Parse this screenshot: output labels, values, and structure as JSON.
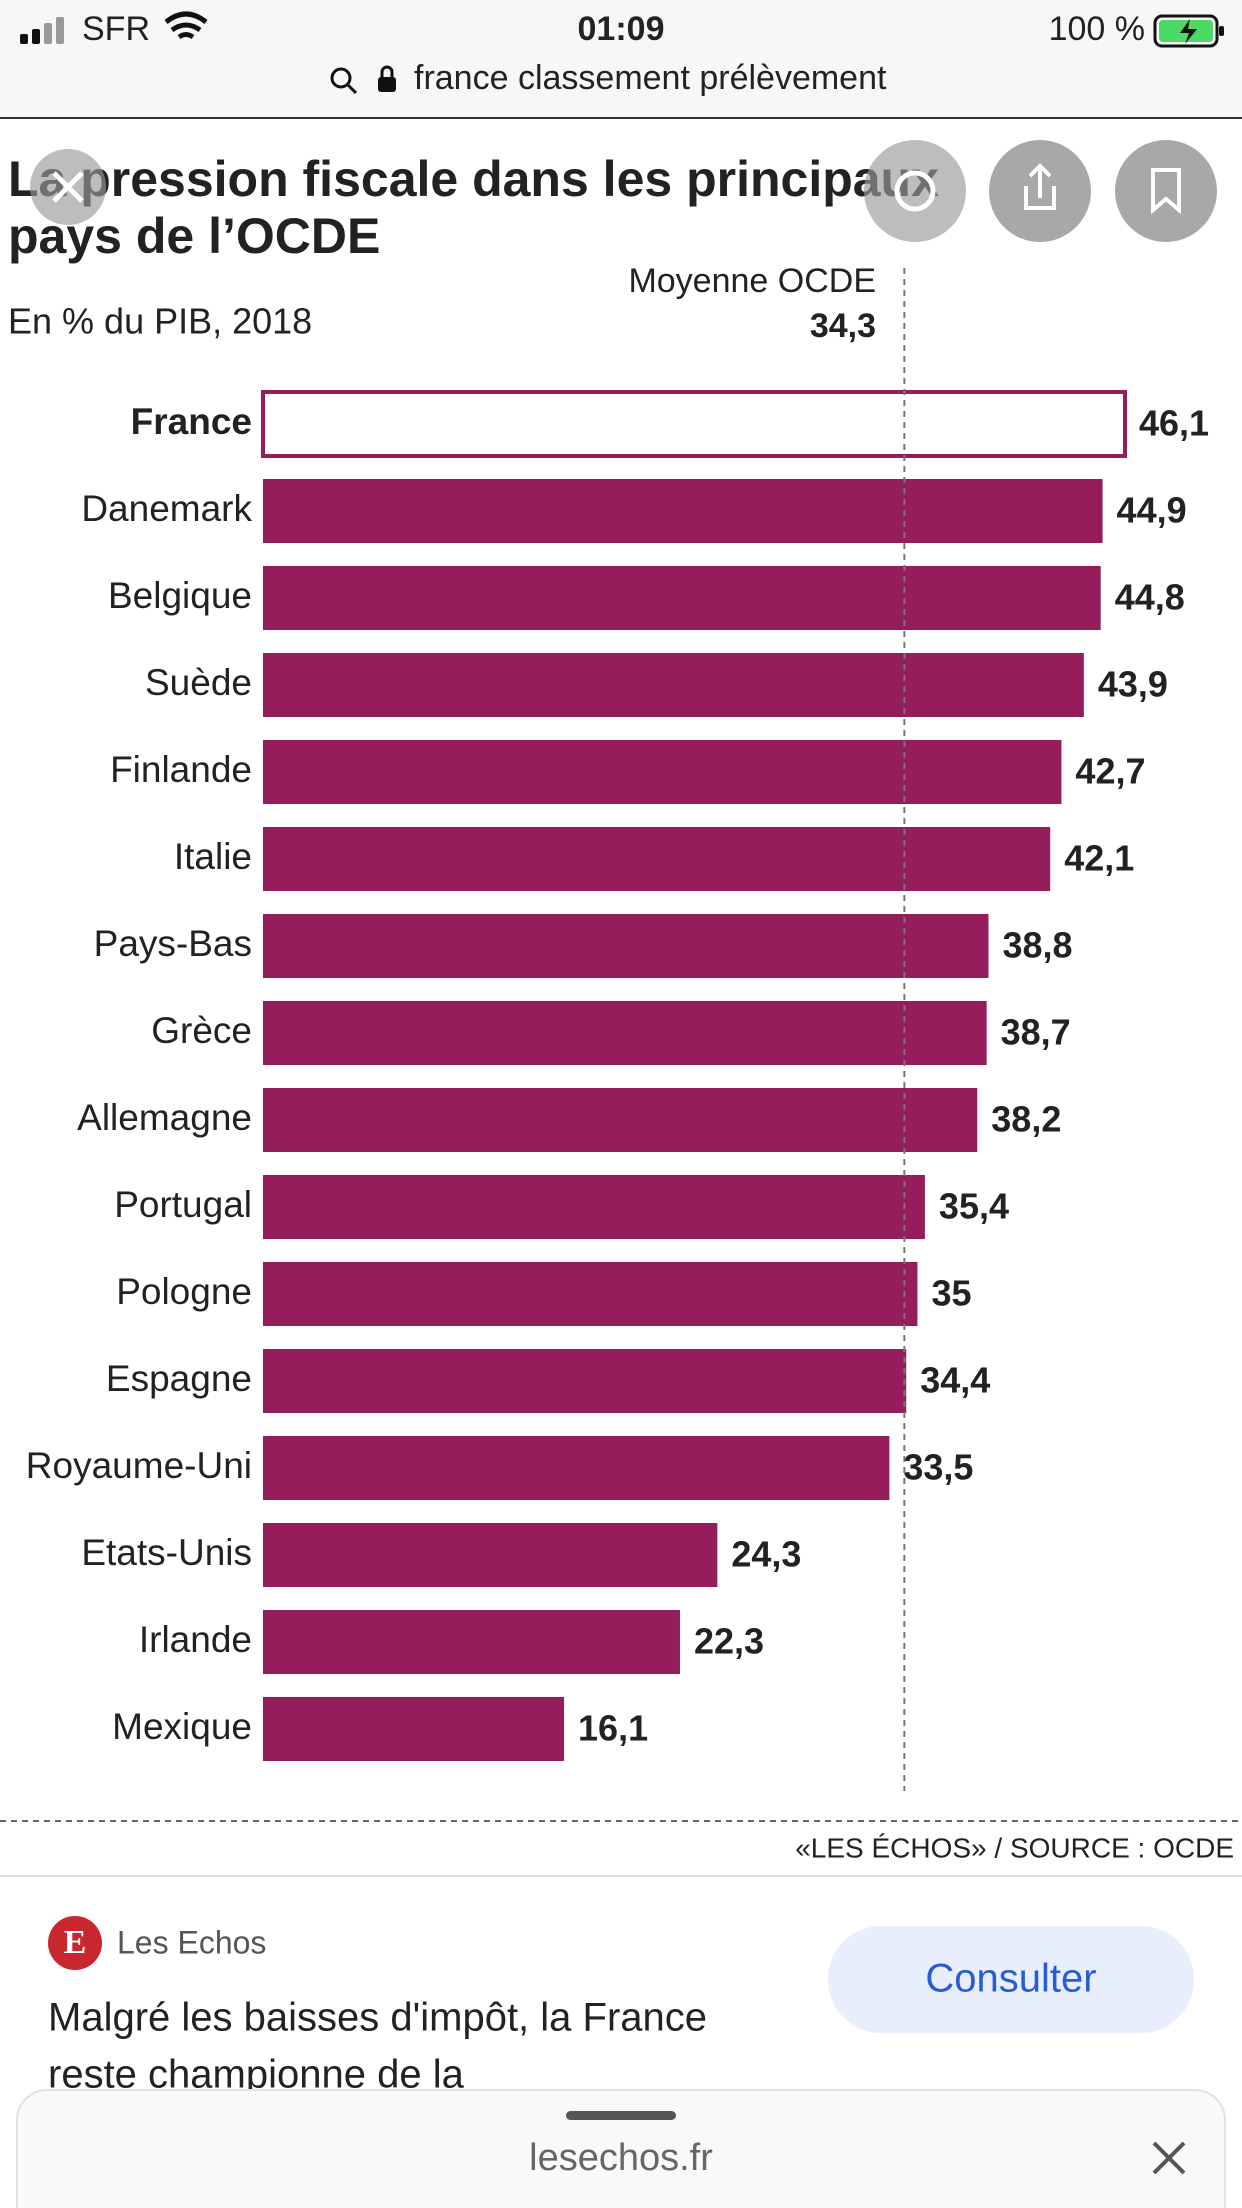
{
  "status_bar": {
    "carrier": "SFR",
    "time": "01:09",
    "battery": "100 %"
  },
  "url_bar": {
    "text": "france classement prélèvement"
  },
  "chart_data": {
    "type": "bar",
    "orientation": "horizontal",
    "title": [
      "La pression fiscale dans les principaux",
      "pays de l’OCDE"
    ],
    "subtitle": "En % du PIB, 2018",
    "categories": [
      "France",
      "Danemark",
      "Belgique",
      "Suède",
      "Finlande",
      "Italie",
      "Pays-Bas",
      "Grèce",
      "Allemagne",
      "Portugal",
      "Pologne",
      "Espagne",
      "Royaume-Uni",
      "Etats-Unis",
      "Irlande",
      "Mexique"
    ],
    "values": [
      46.1,
      44.9,
      44.8,
      43.9,
      42.7,
      42.1,
      38.8,
      38.7,
      38.2,
      35.4,
      35,
      34.4,
      33.5,
      24.3,
      22.3,
      16.1
    ],
    "value_labels": [
      "46,1",
      "44,9",
      "44,8",
      "43,9",
      "42,7",
      "42,1",
      "38,8",
      "38,7",
      "38,2",
      "35,4",
      "35",
      "34,4",
      "33,5",
      "24,3",
      "22,3",
      "16,1"
    ],
    "color": "#951d5c",
    "highlighted": "France",
    "highlight_fill": "#ffffff",
    "xlim": [
      0,
      46.1
    ],
    "reference_line": {
      "label": "Moyenne OCDE",
      "value": 34.3,
      "value_label": "34,3"
    },
    "source": "«LES ÉCHOS» / SOURCE : OCDE"
  },
  "card": {
    "publisher": "Les Echos",
    "logo": "E",
    "button": "Consulter",
    "headline": [
      "Malgré les baisses d'impôt, la France",
      "reste championne de la"
    ]
  },
  "bottom_sheet": {
    "domain": "lesechos.fr"
  }
}
